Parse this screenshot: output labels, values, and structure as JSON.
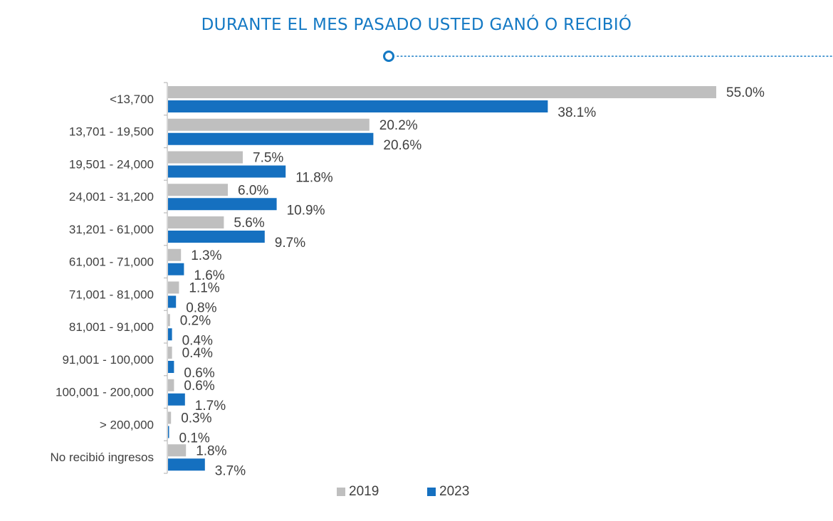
{
  "title": "DURANTE EL MES PASADO USTED GANÓ O RECIBIÓ",
  "colors": {
    "accent": "#1479C4",
    "series_2019": "#BFBFBF",
    "series_2023": "#1570C0",
    "text": "#404040"
  },
  "chart_data": {
    "type": "bar",
    "orientation": "horizontal",
    "categories": [
      "<13,700",
      "13,701 - 19,500",
      "19,501 - 24,000",
      "24,001 - 31,200",
      "31,201 - 61,000",
      "61,001 - 71,000",
      "71,001 - 81,000",
      "81,001 - 91,000",
      "91,001 - 100,000",
      "100,001 - 200,000",
      "> 200,000",
      "No recibió ingresos"
    ],
    "series": [
      {
        "name": "2019",
        "values": [
          55.0,
          20.2,
          7.5,
          6.0,
          5.6,
          1.3,
          1.1,
          0.2,
          0.4,
          0.6,
          0.3,
          1.8
        ],
        "labels": [
          "55.0%",
          "20.2%",
          "7.5%",
          "6.0%",
          "5.6%",
          "1.3%",
          "1.1%",
          "0.2%",
          "0.4%",
          "0.6%",
          "0.3%",
          "1.8%"
        ]
      },
      {
        "name": "2023",
        "values": [
          38.1,
          20.6,
          11.8,
          10.9,
          9.7,
          1.6,
          0.8,
          0.4,
          0.6,
          1.7,
          0.1,
          3.7
        ],
        "labels": [
          "38.1%",
          "20.6%",
          "11.8%",
          "10.9%",
          "9.7%",
          "1.6%",
          "0.8%",
          "0.4%",
          "0.6%",
          "1.7%",
          "0.1%",
          "3.7%"
        ]
      }
    ],
    "xlim": [
      0,
      55
    ],
    "unit": "%",
    "legend_position": "bottom",
    "grid": false
  }
}
